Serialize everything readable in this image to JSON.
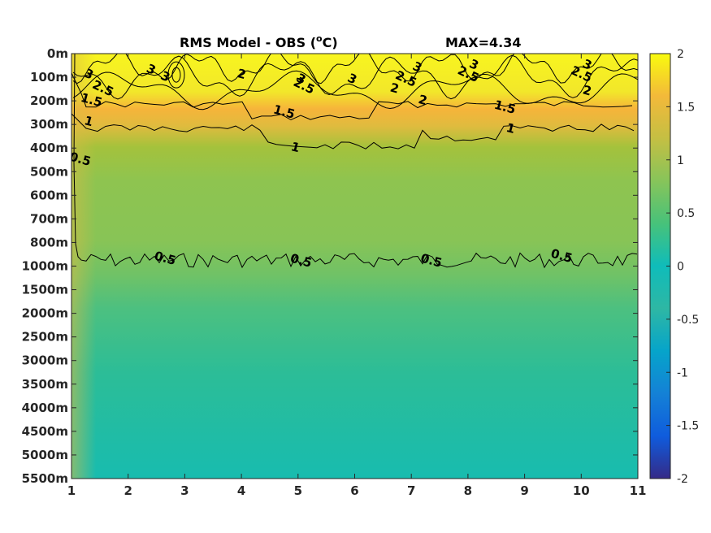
{
  "chart_data": {
    "type": "heatmap",
    "title": "RMS Model - OBS (",
    "title_super": "o",
    "title_end": "C)",
    "max_label": "MAX=4.34",
    "xlabel": "",
    "ylabel": "",
    "x_ticks": [
      1,
      2,
      3,
      4,
      5,
      6,
      7,
      8,
      9,
      10,
      11
    ],
    "xlim": [
      1,
      11
    ],
    "y_tick_labels": [
      "0m",
      "100m",
      "200m",
      "300m",
      "400m",
      "500m",
      "600m",
      "700m",
      "800m",
      "1000m",
      "1500m",
      "2000m",
      "2500m",
      "3000m",
      "3500m",
      "4000m",
      "4500m",
      "5000m",
      "5500m"
    ],
    "colorbar": {
      "range": [
        -2,
        2
      ],
      "tick_values": [
        2,
        1.5,
        1,
        0.5,
        0,
        -0.5,
        -1,
        -1.5,
        -2
      ],
      "tick_labels": [
        "2",
        "1.5",
        "1",
        "0.5",
        "0",
        "-0.5",
        "-1",
        "-1.5",
        "-2"
      ],
      "colormap": "parula"
    },
    "depth_profile": {
      "depth_level_index": [
        0,
        1,
        2,
        3,
        4,
        5,
        6,
        7,
        8,
        9,
        10,
        11,
        12,
        13,
        14,
        15,
        16,
        17,
        18
      ],
      "typical_rms": [
        2.4,
        2.2,
        1.6,
        1.1,
        0.85,
        0.8,
        0.8,
        0.8,
        0.78,
        0.55,
        0.45,
        0.38,
        0.35,
        0.33,
        0.3,
        0.28,
        0.25,
        0.22,
        0.18
      ]
    },
    "contour_levels": [
      0.5,
      1,
      1.5,
      2,
      2.5,
      3
    ],
    "contour_labels": [
      {
        "text": "0.5",
        "x": 1.15,
        "depth_index": 4.5
      },
      {
        "text": "0.5",
        "x": 2.65,
        "depth_index": 8.7
      },
      {
        "text": "0.5",
        "x": 5.05,
        "depth_index": 8.8
      },
      {
        "text": "0.5",
        "x": 7.35,
        "depth_index": 8.8
      },
      {
        "text": "0.5",
        "x": 9.65,
        "depth_index": 8.6
      },
      {
        "text": "1",
        "x": 1.3,
        "depth_index": 2.9
      },
      {
        "text": "1",
        "x": 4.95,
        "depth_index": 4.0
      },
      {
        "text": "1",
        "x": 8.75,
        "depth_index": 3.2
      },
      {
        "text": "1.5",
        "x": 1.35,
        "depth_index": 2.0
      },
      {
        "text": "1.5",
        "x": 4.75,
        "depth_index": 2.5
      },
      {
        "text": "1.5",
        "x": 8.65,
        "depth_index": 2.3
      },
      {
        "text": "2",
        "x": 4.0,
        "depth_index": 0.9
      },
      {
        "text": "2",
        "x": 6.7,
        "depth_index": 1.5
      },
      {
        "text": "2",
        "x": 7.2,
        "depth_index": 2.0
      },
      {
        "text": "2",
        "x": 10.1,
        "depth_index": 1.6
      },
      {
        "text": "2.5",
        "x": 1.55,
        "depth_index": 1.5
      },
      {
        "text": "2.5",
        "x": 5.1,
        "depth_index": 1.4
      },
      {
        "text": "2.5",
        "x": 6.9,
        "depth_index": 1.1
      },
      {
        "text": "2.5",
        "x": 8.0,
        "depth_index": 0.9
      },
      {
        "text": "2.5",
        "x": 10.0,
        "depth_index": 0.9
      },
      {
        "text": "3",
        "x": 1.3,
        "depth_index": 0.9
      },
      {
        "text": "3",
        "x": 2.4,
        "depth_index": 0.7
      },
      {
        "text": "3",
        "x": 2.65,
        "depth_index": 1.0
      },
      {
        "text": "3",
        "x": 5.05,
        "depth_index": 1.1
      },
      {
        "text": "3",
        "x": 5.95,
        "depth_index": 1.1
      },
      {
        "text": "3",
        "x": 7.1,
        "depth_index": 0.6
      },
      {
        "text": "3",
        "x": 8.1,
        "depth_index": 0.5
      },
      {
        "text": "3",
        "x": 10.1,
        "depth_index": 0.5
      }
    ]
  }
}
